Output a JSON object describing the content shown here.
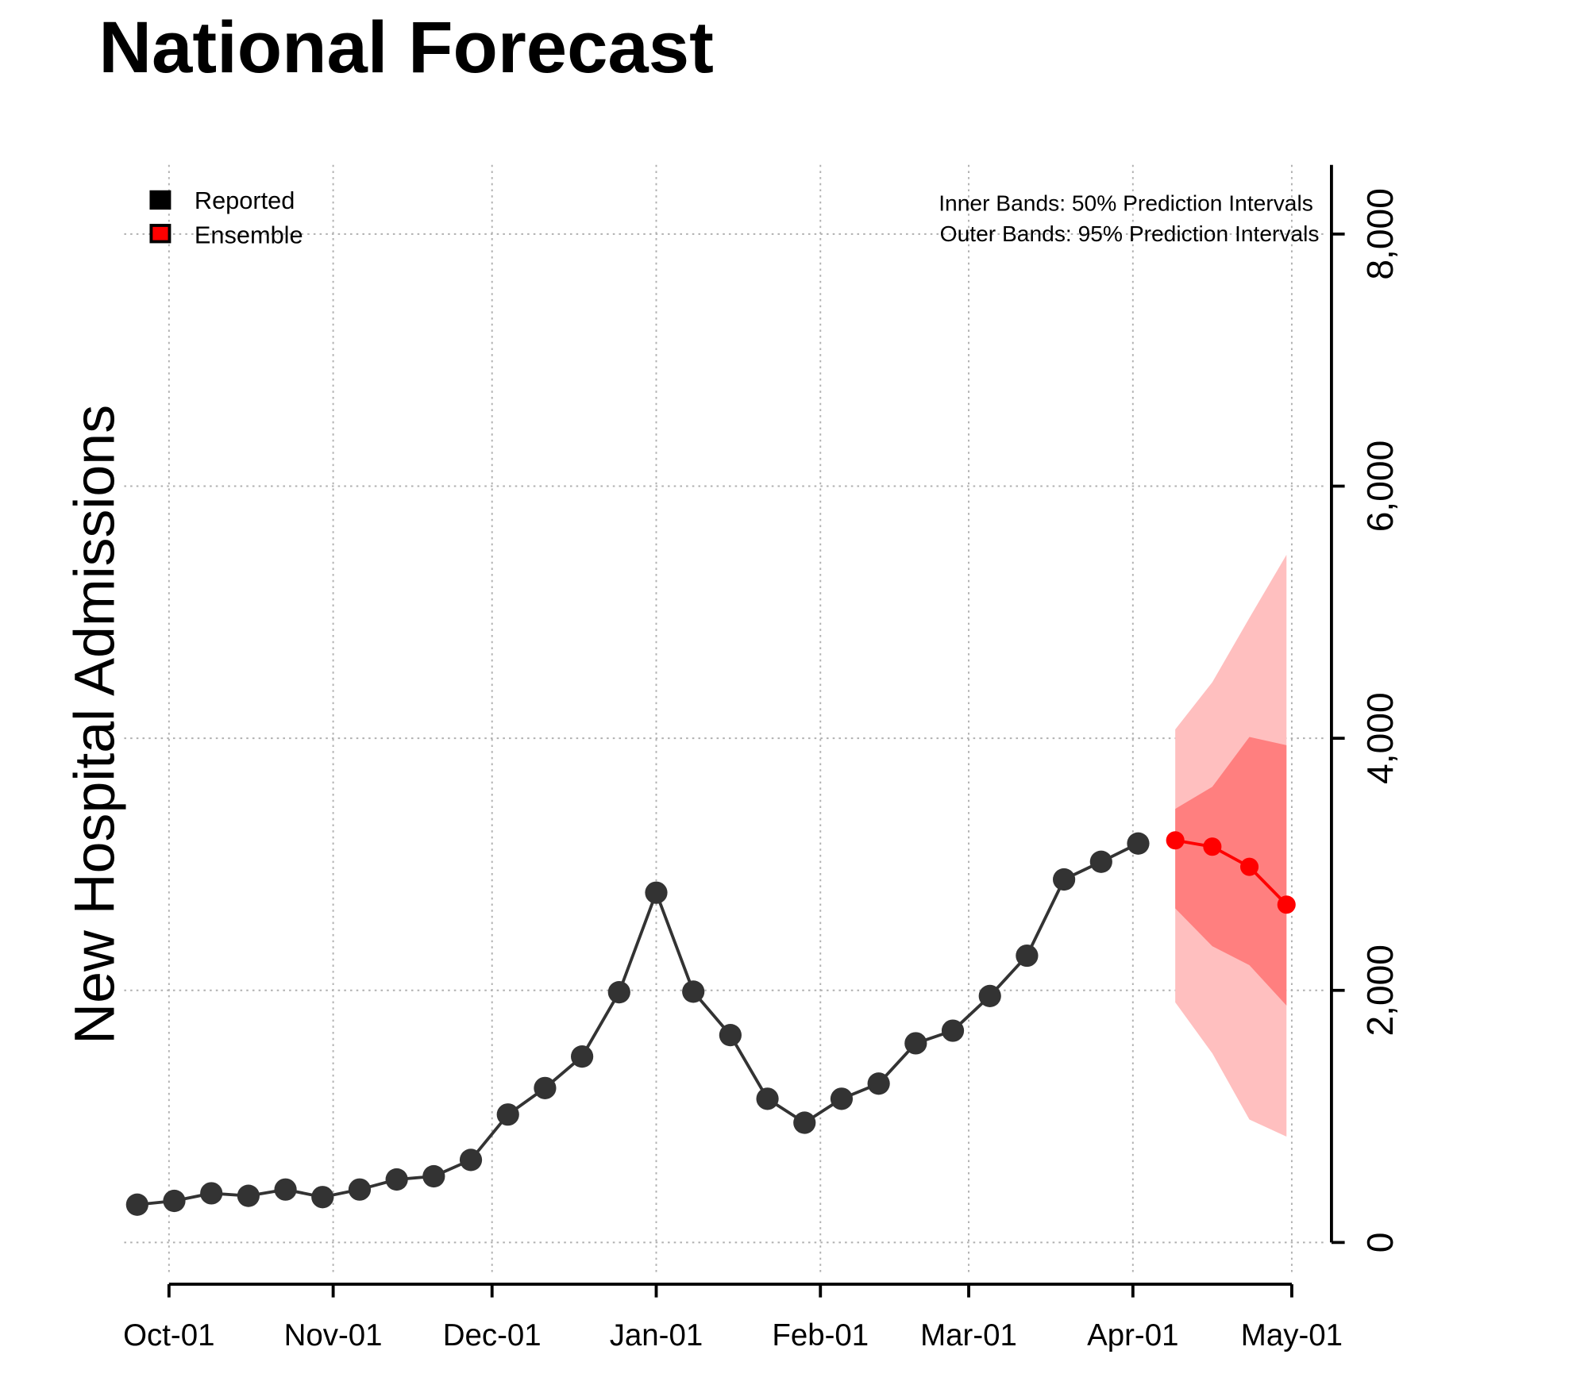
{
  "chart_data": {
    "type": "line",
    "title": "National Forecast",
    "ylabel": "New Hospital Admissions",
    "xlabel": "",
    "xlim": [
      "2021-10-01",
      "2022-05-01"
    ],
    "ylim": [
      0,
      8000
    ],
    "x_ticks": [
      {
        "date": "2021-10-01",
        "label": "Oct-01"
      },
      {
        "date": "2021-11-01",
        "label": "Nov-01"
      },
      {
        "date": "2021-12-01",
        "label": "Dec-01"
      },
      {
        "date": "2022-01-01",
        "label": "Jan-01"
      },
      {
        "date": "2022-02-01",
        "label": "Feb-01"
      },
      {
        "date": "2022-03-01",
        "label": "Mar-01"
      },
      {
        "date": "2022-04-01",
        "label": "Apr-01"
      },
      {
        "date": "2022-05-01",
        "label": "May-01"
      }
    ],
    "y_ticks": [
      {
        "value": 0,
        "label": "0"
      },
      {
        "value": 2000,
        "label": "2,000"
      },
      {
        "value": 4000,
        "label": "4,000"
      },
      {
        "value": 6000,
        "label": "6,000"
      },
      {
        "value": 8000,
        "label": "8,000"
      }
    ],
    "y_axis_side": "right",
    "grid": true,
    "legend": {
      "placement": "top-left",
      "entries": [
        {
          "label": "Reported",
          "color": "#000000"
        },
        {
          "label": "Ensemble",
          "color": "#ff0000"
        }
      ]
    },
    "annotations": [
      "Inner Bands: 50% Prediction Intervals",
      "Outer Bands: 95% Prediction Intervals"
    ],
    "series": [
      {
        "name": "Reported",
        "color": "#333333",
        "x": [
          "2021-09-25",
          "2021-10-02",
          "2021-10-09",
          "2021-10-16",
          "2021-10-23",
          "2021-10-30",
          "2021-11-06",
          "2021-11-13",
          "2021-11-20",
          "2021-11-27",
          "2021-12-04",
          "2021-12-11",
          "2021-12-18",
          "2021-12-25",
          "2022-01-01",
          "2022-01-08",
          "2022-01-15",
          "2022-01-22",
          "2022-01-29",
          "2022-02-05",
          "2022-02-12",
          "2022-02-19",
          "2022-02-26",
          "2022-03-05",
          "2022-03-12",
          "2022-03-19",
          "2022-03-26",
          "2022-04-02"
        ],
        "y": [
          300,
          330,
          390,
          370,
          420,
          360,
          420,
          500,
          525,
          655,
          1015,
          1225,
          1475,
          1985,
          2775,
          1990,
          1645,
          1140,
          950,
          1140,
          1260,
          1580,
          1680,
          1955,
          2275,
          2880,
          3020,
          3165
        ]
      },
      {
        "name": "Ensemble",
        "color": "#ff0000",
        "x": [
          "2022-04-09",
          "2022-04-16",
          "2022-04-23",
          "2022-04-30"
        ],
        "y": [
          3190,
          3140,
          2980,
          2680
        ],
        "pi50_lower": [
          2650,
          2350,
          2200,
          1880
        ],
        "pi50_upper": [
          3440,
          3615,
          4010,
          3945
        ],
        "pi95_lower": [
          1905,
          1500,
          975,
          840
        ],
        "pi95_upper": [
          4070,
          4445,
          4955,
          5455
        ],
        "pi50_color": "#ff7f7f",
        "pi95_color": "#ffbfbf"
      }
    ]
  }
}
